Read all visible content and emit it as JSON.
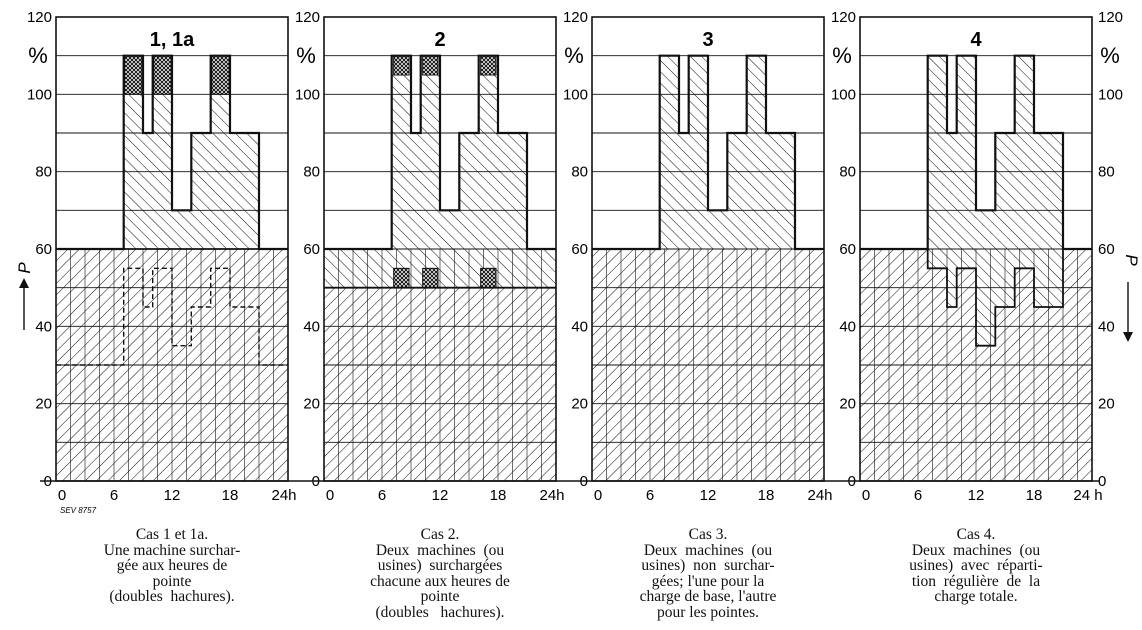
{
  "figure_code": "SEV 8757",
  "y_axis_label": "P",
  "percent_symbol": "%",
  "hour_unit": "h",
  "chart_data": [
    {
      "type": "area",
      "title": "1,  1a",
      "xlim": [
        0,
        24
      ],
      "ylim": [
        0,
        120
      ],
      "x_ticks": [
        "0",
        "6",
        "12",
        "18",
        "24h"
      ],
      "y_ticks": [
        "0",
        "20",
        "40",
        "60",
        "80",
        "100",
        "120"
      ],
      "profile": [
        [
          0,
          60
        ],
        [
          7,
          60
        ],
        [
          7,
          110
        ],
        [
          9,
          110
        ],
        [
          9,
          90
        ],
        [
          10,
          90
        ],
        [
          10,
          110
        ],
        [
          12,
          110
        ],
        [
          12,
          70
        ],
        [
          14,
          70
        ],
        [
          14,
          90
        ],
        [
          16,
          90
        ],
        [
          16,
          110
        ],
        [
          18,
          110
        ],
        [
          18,
          90
        ],
        [
          21,
          90
        ],
        [
          21,
          60
        ],
        [
          24,
          60
        ]
      ],
      "base_load": [
        [
          0,
          60
        ],
        [
          24,
          60
        ]
      ],
      "overload_limit": 100,
      "alt_profile_1a": [
        [
          0,
          30
        ],
        [
          7,
          30
        ],
        [
          7,
          55
        ],
        [
          9,
          55
        ],
        [
          9,
          45
        ],
        [
          10,
          45
        ],
        [
          10,
          55
        ],
        [
          12,
          55
        ],
        [
          12,
          35
        ],
        [
          14,
          35
        ],
        [
          14,
          45
        ],
        [
          16,
          45
        ],
        [
          16,
          55
        ],
        [
          18,
          55
        ],
        [
          18,
          45
        ],
        [
          21,
          45
        ],
        [
          21,
          30
        ],
        [
          24,
          30
        ]
      ]
    },
    {
      "type": "area",
      "title": "2",
      "xlim": [
        0,
        24
      ],
      "ylim": [
        0,
        120
      ],
      "x_ticks": [
        "0",
        "6",
        "12",
        "18",
        "24h"
      ],
      "y_ticks": [
        "0",
        "20",
        "40",
        "60",
        "80",
        "100",
        "120"
      ],
      "profile": [
        [
          0,
          60
        ],
        [
          7,
          60
        ],
        [
          7,
          110
        ],
        [
          9,
          110
        ],
        [
          9,
          90
        ],
        [
          10,
          90
        ],
        [
          10,
          110
        ],
        [
          12,
          110
        ],
        [
          12,
          70
        ],
        [
          14,
          70
        ],
        [
          14,
          90
        ],
        [
          16,
          90
        ],
        [
          16,
          110
        ],
        [
          18,
          110
        ],
        [
          18,
          90
        ],
        [
          21,
          90
        ],
        [
          21,
          60
        ],
        [
          24,
          60
        ]
      ],
      "base_load": [
        [
          0,
          50
        ],
        [
          24,
          50
        ]
      ],
      "overload_limit": 55
    },
    {
      "type": "area",
      "title": "3",
      "xlim": [
        0,
        24
      ],
      "ylim": [
        0,
        120
      ],
      "x_ticks": [
        "0",
        "6",
        "12",
        "18",
        "24h"
      ],
      "y_ticks": [
        "0",
        "20",
        "40",
        "60",
        "80",
        "100",
        "120"
      ],
      "profile": [
        [
          0,
          60
        ],
        [
          7,
          60
        ],
        [
          7,
          110
        ],
        [
          9,
          110
        ],
        [
          9,
          90
        ],
        [
          10,
          90
        ],
        [
          10,
          110
        ],
        [
          12,
          110
        ],
        [
          12,
          70
        ],
        [
          14,
          70
        ],
        [
          14,
          90
        ],
        [
          16,
          90
        ],
        [
          16,
          110
        ],
        [
          18,
          110
        ],
        [
          18,
          90
        ],
        [
          21,
          90
        ],
        [
          21,
          60
        ],
        [
          24,
          60
        ]
      ],
      "base_load": [
        [
          0,
          60
        ],
        [
          24,
          60
        ]
      ]
    },
    {
      "type": "area",
      "title": "4",
      "xlim": [
        0,
        24
      ],
      "ylim": [
        0,
        120
      ],
      "x_ticks": [
        "0",
        "6",
        "12",
        "18",
        "24 h"
      ],
      "y_ticks": [
        "0",
        "20",
        "40",
        "60",
        "80",
        "100",
        "120"
      ],
      "profile": [
        [
          0,
          60
        ],
        [
          7,
          60
        ],
        [
          7,
          110
        ],
        [
          9,
          110
        ],
        [
          9,
          90
        ],
        [
          10,
          90
        ],
        [
          10,
          110
        ],
        [
          12,
          110
        ],
        [
          12,
          70
        ],
        [
          14,
          70
        ],
        [
          14,
          90
        ],
        [
          16,
          90
        ],
        [
          16,
          110
        ],
        [
          18,
          110
        ],
        [
          18,
          90
        ],
        [
          21,
          90
        ],
        [
          21,
          60
        ],
        [
          24,
          60
        ]
      ],
      "base_load": [
        [
          0,
          60
        ],
        [
          7,
          60
        ],
        [
          7,
          55
        ],
        [
          9,
          55
        ],
        [
          9,
          45
        ],
        [
          10,
          45
        ],
        [
          10,
          55
        ],
        [
          12,
          55
        ],
        [
          12,
          35
        ],
        [
          14,
          35
        ],
        [
          14,
          45
        ],
        [
          16,
          45
        ],
        [
          16,
          55
        ],
        [
          18,
          55
        ],
        [
          18,
          45
        ],
        [
          21,
          45
        ],
        [
          21,
          60
        ],
        [
          24,
          60
        ]
      ]
    }
  ],
  "captions": [
    [
      "Cas 1 et 1a.",
      "Une machine surchar-",
      "gée aux heures de",
      "pointe",
      "(doubles  hachures)."
    ],
    [
      "Cas 2.",
      "Deux  machines  (ou",
      "usines)  surchargées",
      "chacune aux heures de",
      "pointe",
      "(doubles   hachures)."
    ],
    [
      "Cas 3.",
      "Deux  machines  (ou",
      "usines)  non  surchar-",
      "gées; l'une pour la",
      "charge de base, l'autre",
      "pour les pointes."
    ],
    [
      "Cas 4.",
      "Deux  machines  (ou",
      "usines)  avec  réparti-",
      "tion  régulière  de  la",
      "charge totale."
    ]
  ],
  "colors": {
    "ink": "#111111",
    "paper": "#ffffff"
  }
}
